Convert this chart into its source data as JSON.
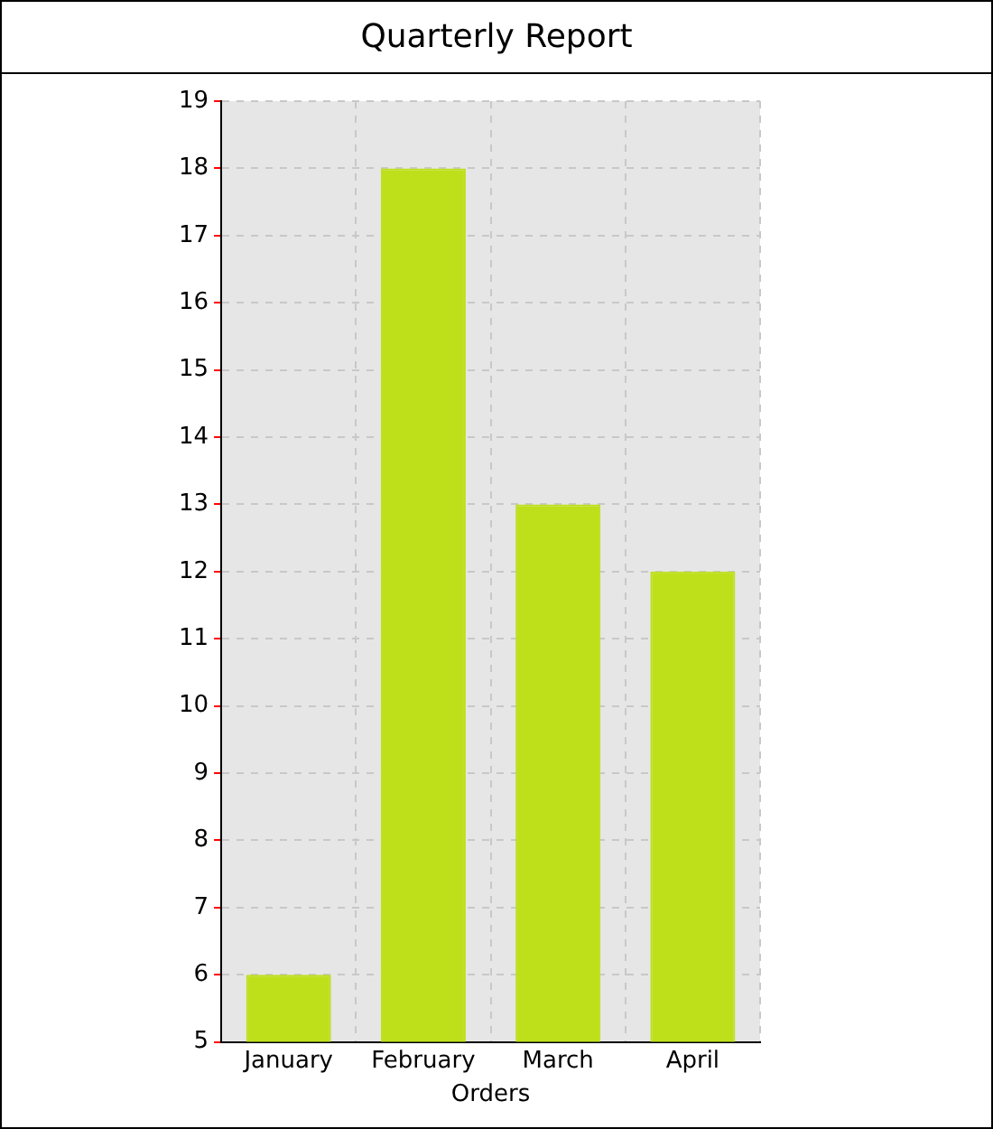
{
  "chart_data": {
    "type": "bar",
    "title": "Quarterly Report",
    "xlabel": "Orders",
    "categories": [
      "January",
      "February",
      "March",
      "April"
    ],
    "values": [
      6,
      18,
      13,
      12
    ],
    "color": "#bde01a",
    "ylim": [
      5,
      19
    ],
    "yticks": [
      5,
      6,
      7,
      8,
      9,
      10,
      11,
      12,
      13,
      14,
      15,
      16,
      17,
      18,
      19
    ],
    "grid": true
  }
}
